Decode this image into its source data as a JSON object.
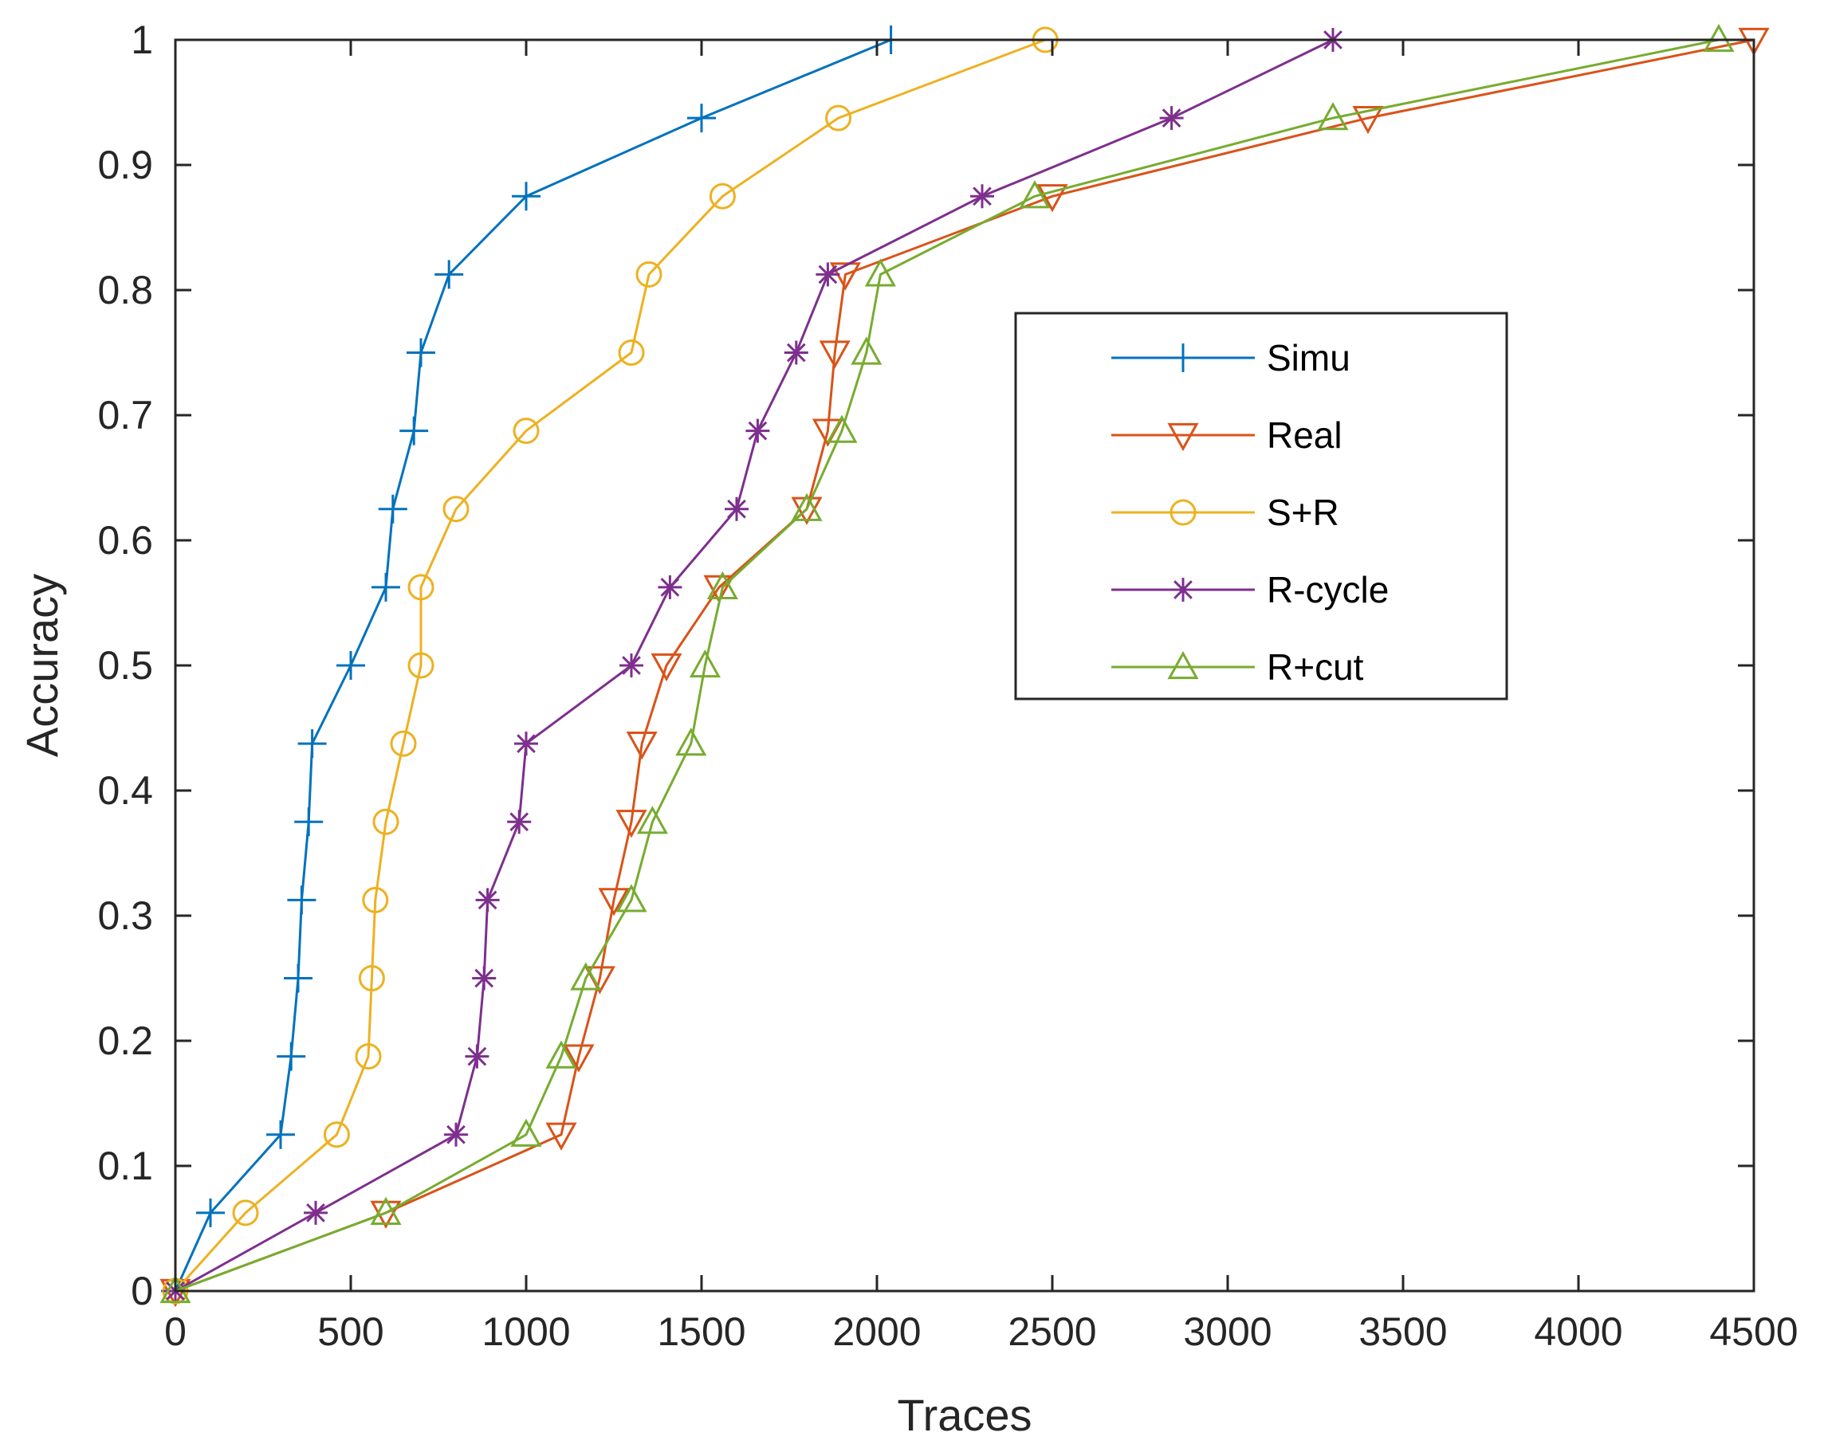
{
  "chart_data": {
    "type": "line",
    "title": "",
    "xlabel": "Traces",
    "ylabel": "Accuracy",
    "xlim": [
      0,
      4500
    ],
    "ylim": [
      0,
      1
    ],
    "xticks": [
      0,
      500,
      1000,
      1500,
      2000,
      2500,
      3000,
      3500,
      4000,
      4500
    ],
    "yticks": [
      0,
      0.1,
      0.2,
      0.3,
      0.4,
      0.5,
      0.6,
      0.7,
      0.8,
      0.9,
      1
    ],
    "xtick_labels": [
      "0",
      "500",
      "1000",
      "1500",
      "2000",
      "2500",
      "3000",
      "3500",
      "4000",
      "4500"
    ],
    "ytick_labels": [
      "0",
      "0.1",
      "0.2",
      "0.3",
      "0.4",
      "0.5",
      "0.6",
      "0.7",
      "0.8",
      "0.9",
      "1"
    ],
    "grid": false,
    "legend_position": "center-right",
    "series": [
      {
        "name": "Simu",
        "color": "#0072BD",
        "marker": "plus",
        "x": [
          0,
          100,
          300,
          330,
          350,
          360,
          380,
          390,
          500,
          600,
          620,
          680,
          700,
          780,
          1000,
          1500,
          2040
        ],
        "y": [
          0,
          0.0625,
          0.125,
          0.1875,
          0.25,
          0.3125,
          0.375,
          0.4375,
          0.5,
          0.5625,
          0.625,
          0.6875,
          0.75,
          0.8125,
          0.875,
          0.9375,
          1
        ]
      },
      {
        "name": "Real",
        "color": "#D95319",
        "marker": "triangle-down",
        "x": [
          0,
          600,
          1100,
          1150,
          1210,
          1250,
          1300,
          1330,
          1400,
          1550,
          1800,
          1860,
          1880,
          1910,
          2500,
          3400,
          4500
        ],
        "y": [
          0,
          0.0625,
          0.125,
          0.1875,
          0.25,
          0.3125,
          0.375,
          0.4375,
          0.5,
          0.5625,
          0.625,
          0.6875,
          0.75,
          0.8125,
          0.875,
          0.9375,
          1
        ]
      },
      {
        "name": "S+R",
        "color": "#EDB120",
        "marker": "circle",
        "x": [
          0,
          200,
          460,
          550,
          560,
          570,
          600,
          650,
          700,
          700,
          800,
          1000,
          1300,
          1350,
          1560,
          1890,
          2480
        ],
        "y": [
          0,
          0.0625,
          0.125,
          0.1875,
          0.25,
          0.3125,
          0.375,
          0.4375,
          0.5,
          0.5625,
          0.625,
          0.6875,
          0.75,
          0.8125,
          0.875,
          0.9375,
          1
        ]
      },
      {
        "name": "R-cycle",
        "color": "#7E2F8E",
        "marker": "asterisk",
        "x": [
          0,
          400,
          800,
          860,
          880,
          890,
          980,
          1000,
          1300,
          1410,
          1600,
          1660,
          1770,
          1860,
          2300,
          2840,
          3300
        ],
        "y": [
          0,
          0.0625,
          0.125,
          0.1875,
          0.25,
          0.3125,
          0.375,
          0.4375,
          0.5,
          0.5625,
          0.625,
          0.6875,
          0.75,
          0.8125,
          0.875,
          0.9375,
          1
        ]
      },
      {
        "name": "R+cut",
        "color": "#77AC30",
        "marker": "triangle-up",
        "x": [
          0,
          600,
          1000,
          1100,
          1170,
          1300,
          1360,
          1470,
          1510,
          1560,
          1800,
          1900,
          1970,
          2010,
          2450,
          3300,
          4400
        ],
        "y": [
          0,
          0.0625,
          0.125,
          0.1875,
          0.25,
          0.3125,
          0.375,
          0.4375,
          0.5,
          0.5625,
          0.625,
          0.6875,
          0.75,
          0.8125,
          0.875,
          0.9375,
          1
        ]
      }
    ]
  }
}
